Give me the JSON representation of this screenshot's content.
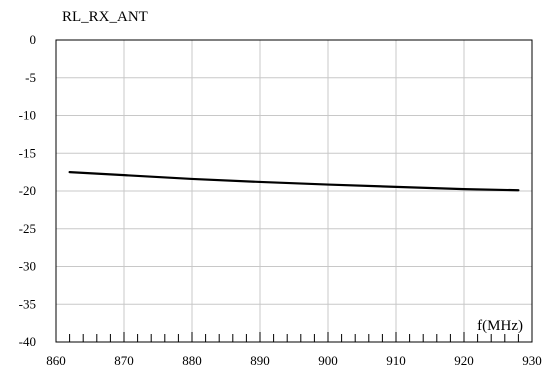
{
  "chart_data": {
    "type": "line",
    "title": "RL_RX_ANT",
    "xlabel": "f(MHz)",
    "ylabel": "",
    "xlim": [
      860,
      930
    ],
    "ylim": [
      -40,
      0
    ],
    "x_ticks": [
      "860",
      "870",
      "880",
      "890",
      "900",
      "910",
      "920",
      "930"
    ],
    "y_ticks": [
      "0",
      "-5",
      "-10",
      "-15",
      "-20",
      "-25",
      "-30",
      "-35",
      "-40"
    ],
    "x_minor_step": 2,
    "grid": true,
    "series": [
      {
        "color": "#000000",
        "x": [
          862,
          870,
          880,
          890,
          900,
          910,
          920,
          928
        ],
        "y": [
          -17.5,
          -17.9,
          -18.4,
          -18.8,
          -19.15,
          -19.45,
          -19.75,
          -19.9
        ]
      }
    ]
  }
}
